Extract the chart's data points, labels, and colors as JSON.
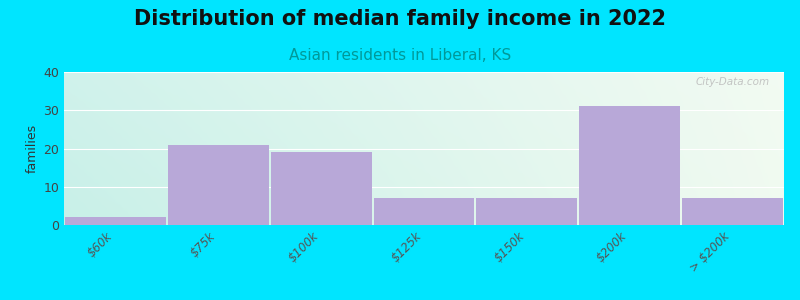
{
  "title": "Distribution of median family income in 2022",
  "subtitle": "Asian residents in Liberal, KS",
  "ylabel": "families",
  "categories": [
    "$60k",
    "$75k",
    "$100k",
    "$125k",
    "$150k",
    "$200k",
    "> $200k"
  ],
  "values": [
    2,
    21,
    19,
    7,
    7,
    31,
    7
  ],
  "bar_color": "#b8a8d8",
  "background_color": "#00e5ff",
  "plot_bg_left": "#b2dfdb",
  "plot_bg_right": "#f1f8e9",
  "ylim": [
    0,
    40
  ],
  "yticks": [
    0,
    10,
    20,
    30,
    40
  ],
  "title_fontsize": 15,
  "subtitle_fontsize": 11,
  "ylabel_fontsize": 9,
  "watermark": "City-Data.com"
}
